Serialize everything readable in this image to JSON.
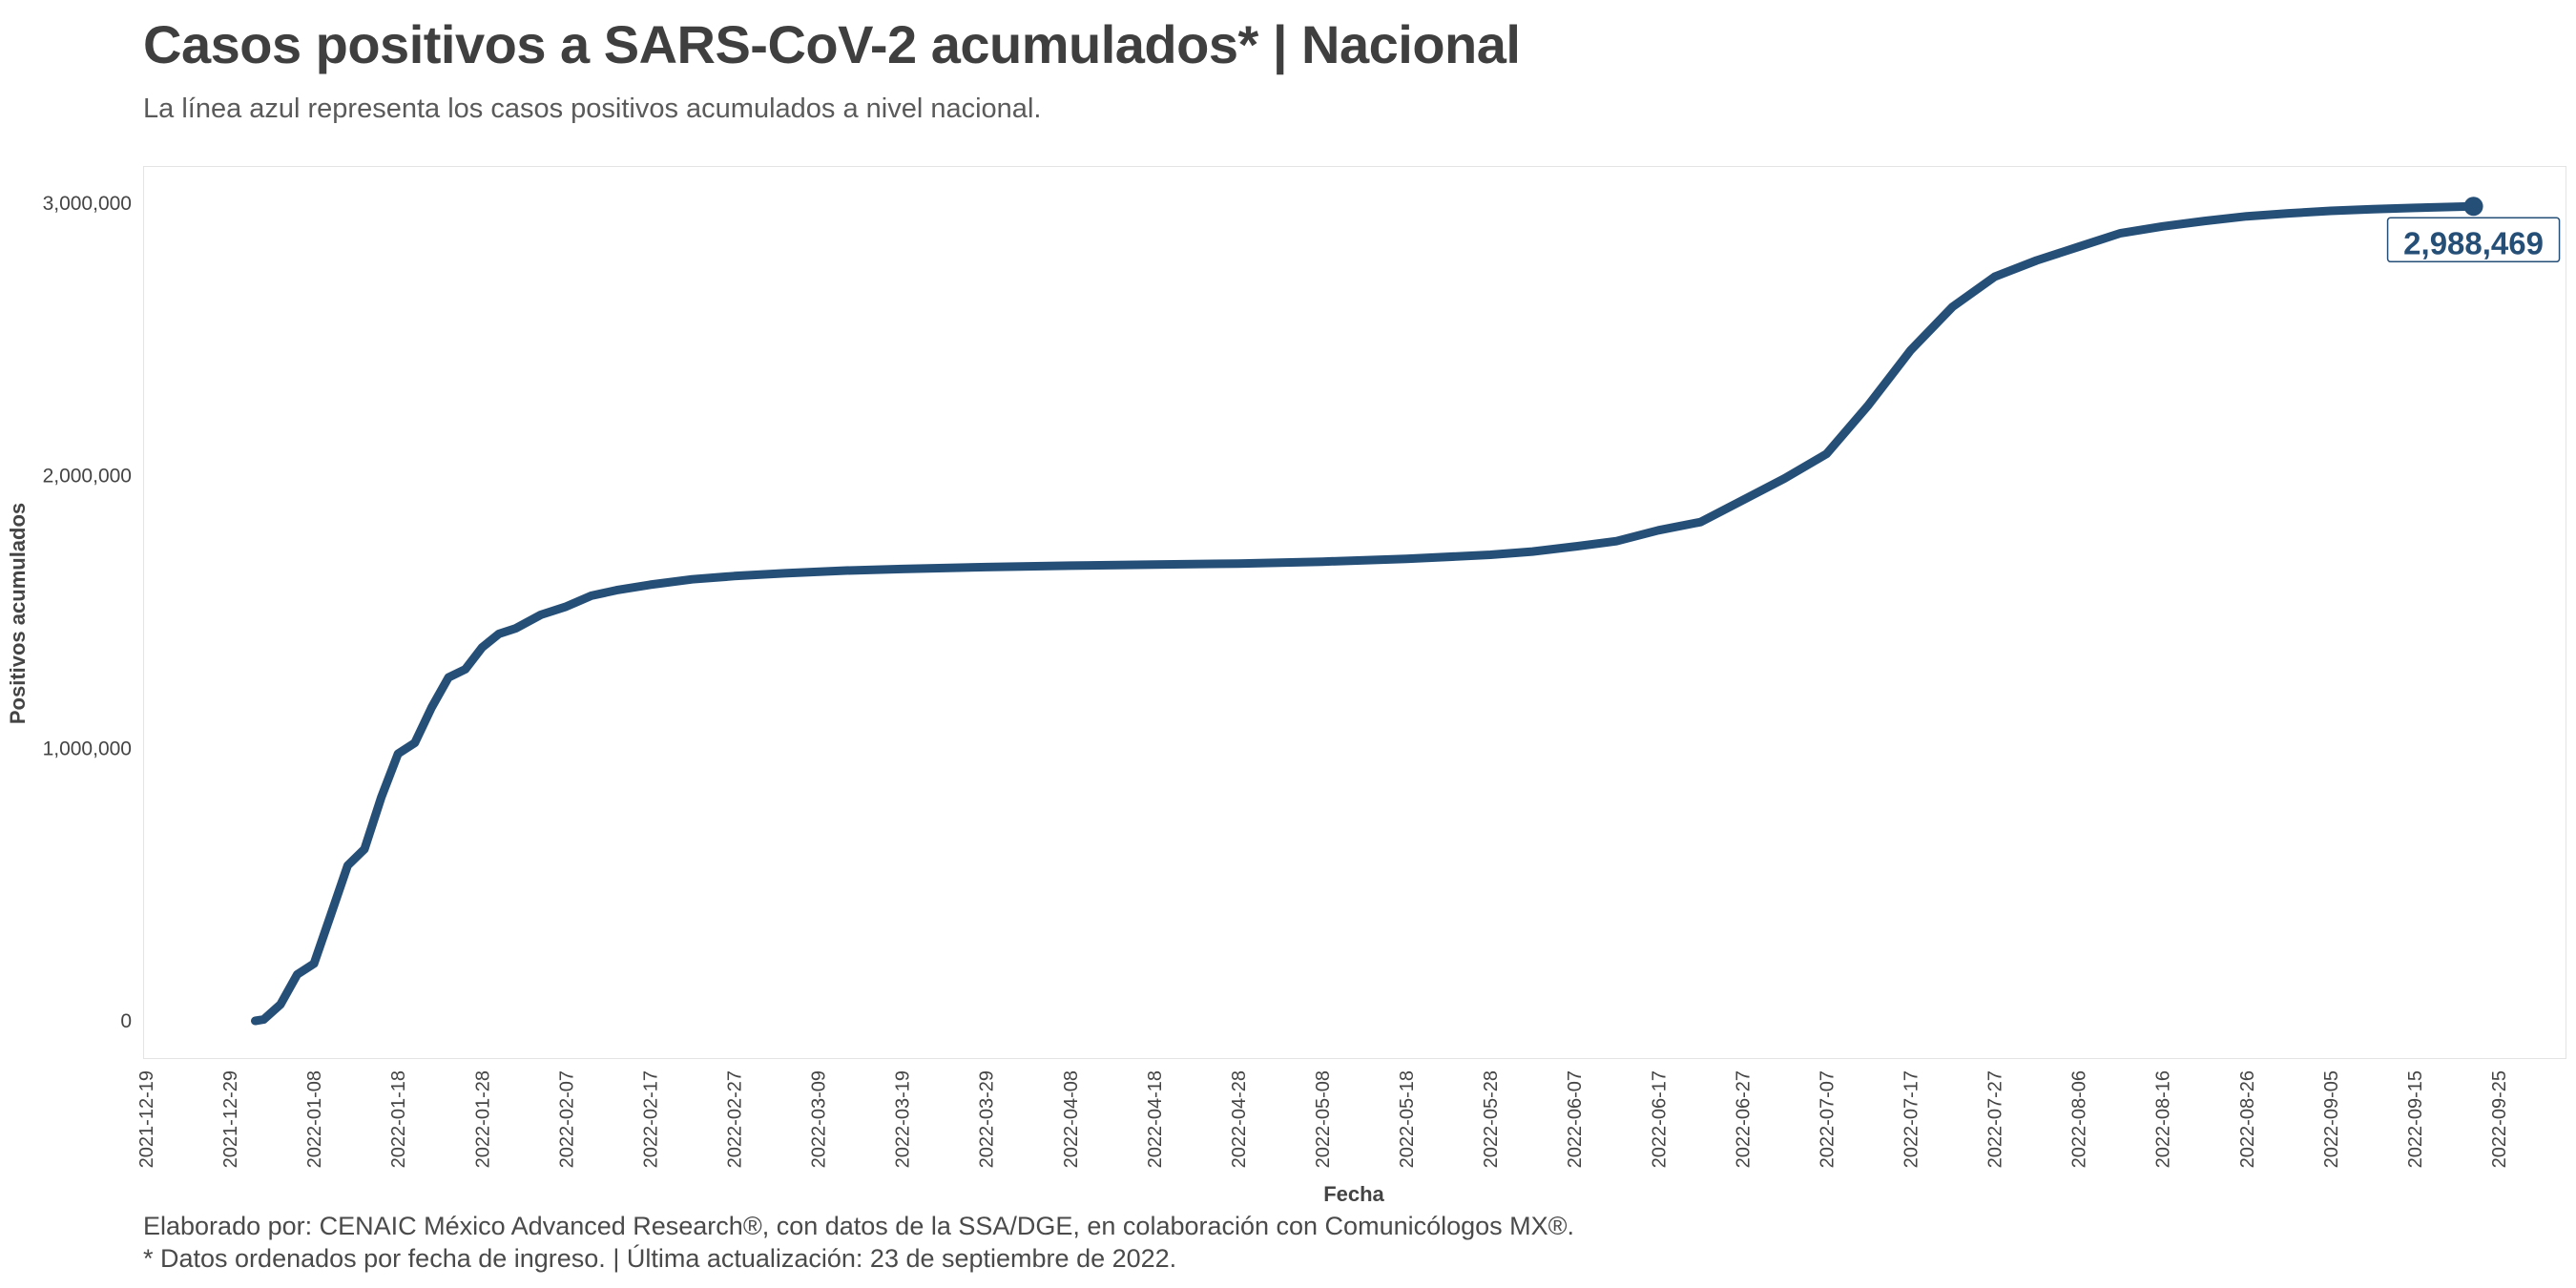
{
  "header": {
    "title": "Casos positivos a SARS-CoV-2 acumulados* | Nacional",
    "subtitle": "La línea azul representa los casos positivos acumulados a nivel nacional."
  },
  "footer": {
    "line1": "Elaborado por: CENAIC México Advanced Research®, con datos de la SSA/DGE, en colaboración con Comunicólogos MX®.",
    "line2": "* Datos ordenados por fecha de ingreso. | Última actualización: 23 de septiembre de 2022."
  },
  "colors": {
    "line": "#264f78",
    "grid_frame": "#e4e4e4"
  },
  "chart_data": {
    "type": "line",
    "title": "Casos positivos a SARS-CoV-2 acumulados* | Nacional",
    "xlabel": "Fecha",
    "ylabel": "Positivos acumulados",
    "xlim": [
      "2021-12-19",
      "2022-09-25"
    ],
    "ylim": [
      0,
      3000000
    ],
    "y_ticks": [
      0,
      1000000,
      2000000,
      3000000
    ],
    "y_tick_labels": [
      "0",
      "1,000,000",
      "2,000,000",
      "3,000,000"
    ],
    "x_tick_labels": [
      "2021-12-19",
      "2021-12-29",
      "2022-01-08",
      "2022-01-18",
      "2022-01-28",
      "2022-02-07",
      "2022-02-17",
      "2022-02-27",
      "2022-03-09",
      "2022-03-19",
      "2022-03-29",
      "2022-04-08",
      "2022-04-18",
      "2022-04-28",
      "2022-05-08",
      "2022-05-18",
      "2022-05-28",
      "2022-06-07",
      "2022-06-17",
      "2022-06-27",
      "2022-07-07",
      "2022-07-17",
      "2022-07-27",
      "2022-08-06",
      "2022-08-16",
      "2022-08-26",
      "2022-09-05",
      "2022-09-15",
      "2022-09-25"
    ],
    "grid": false,
    "series": [
      {
        "x": [
          "2022-01-01",
          "2022-01-02",
          "2022-01-04",
          "2022-01-06",
          "2022-01-08",
          "2022-01-10",
          "2022-01-12",
          "2022-01-14",
          "2022-01-16",
          "2022-01-18",
          "2022-01-20",
          "2022-01-22",
          "2022-01-24",
          "2022-01-26",
          "2022-01-28",
          "2022-01-30",
          "2022-02-01",
          "2022-02-04",
          "2022-02-07",
          "2022-02-10",
          "2022-02-13",
          "2022-02-17",
          "2022-02-22",
          "2022-02-27",
          "2022-03-05",
          "2022-03-12",
          "2022-03-19",
          "2022-03-29",
          "2022-04-08",
          "2022-04-18",
          "2022-04-28",
          "2022-05-08",
          "2022-05-18",
          "2022-05-28",
          "2022-06-02",
          "2022-06-07",
          "2022-06-12",
          "2022-06-17",
          "2022-06-22",
          "2022-06-27",
          "2022-07-02",
          "2022-07-07",
          "2022-07-12",
          "2022-07-17",
          "2022-07-22",
          "2022-07-27",
          "2022-08-01",
          "2022-08-06",
          "2022-08-11",
          "2022-08-16",
          "2022-08-21",
          "2022-08-26",
          "2022-08-31",
          "2022-09-05",
          "2022-09-10",
          "2022-09-15",
          "2022-09-22"
        ],
        "values": [
          0,
          5000,
          60000,
          170000,
          210000,
          390000,
          570000,
          630000,
          820000,
          980000,
          1020000,
          1150000,
          1260000,
          1290000,
          1370000,
          1420000,
          1440000,
          1490000,
          1520000,
          1560000,
          1580000,
          1600000,
          1620000,
          1632000,
          1642000,
          1652000,
          1658000,
          1665000,
          1670000,
          1674000,
          1678000,
          1685000,
          1695000,
          1710000,
          1722000,
          1740000,
          1760000,
          1800000,
          1830000,
          1910000,
          1990000,
          2080000,
          2260000,
          2460000,
          2620000,
          2730000,
          2790000,
          2840000,
          2890000,
          2915000,
          2935000,
          2952000,
          2963000,
          2972000,
          2978000,
          2983000,
          2988469
        ]
      }
    ],
    "end_label": "2,988,469"
  }
}
